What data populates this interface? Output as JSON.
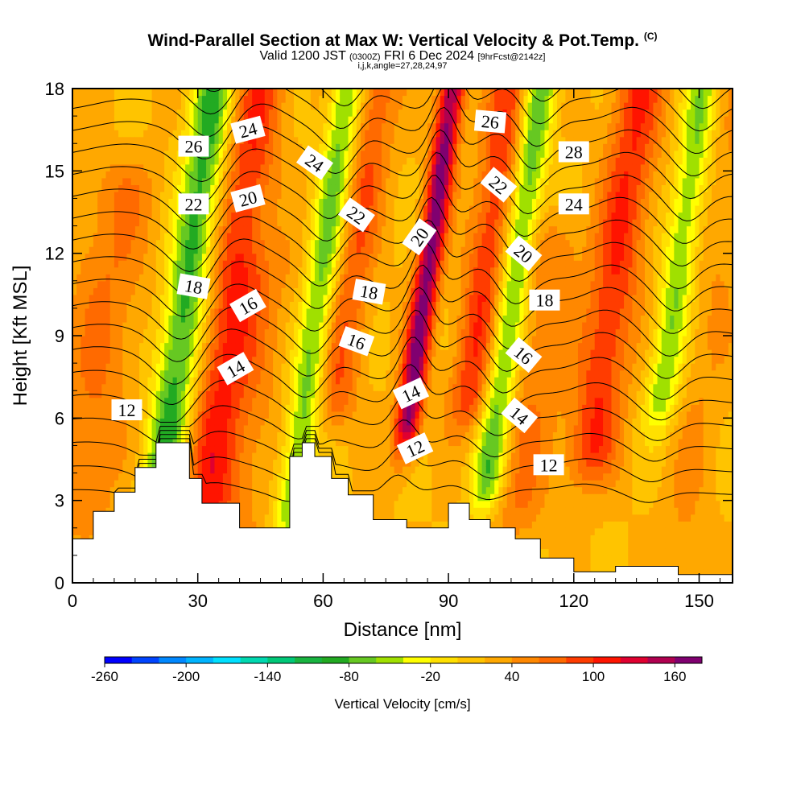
{
  "title": "Wind-Parallel Section at Max W: Vertical Velocity & Pot.Temp.",
  "title_mark": "(C)",
  "subtitle_pre": "Valid 1200 JST",
  "subtitle_utc": "(0300Z)",
  "subtitle_date": "FRI 6 Dec 2024",
  "subtitle_fcst": "[9hrFcst@2142z]",
  "index_line": "i,j,k,angle=27,28,24,97",
  "chart_data": {
    "type": "heatmap",
    "xlabel": "Distance [nm]",
    "ylabel": "Height [Kft MSL]",
    "xlim": [
      0,
      158
    ],
    "ylim": [
      0,
      18
    ],
    "x_ticks": [
      0,
      30,
      60,
      90,
      120,
      150
    ],
    "y_ticks": [
      0,
      3,
      6,
      9,
      12,
      15,
      18
    ],
    "colorbar": {
      "label": "Vertical Velocity [cm/s]",
      "tick_labels": [
        "-260",
        "-200",
        "-140",
        "-80",
        "-20",
        "40",
        "100",
        "160"
      ],
      "tick_values": [
        -260,
        -200,
        -140,
        -80,
        -20,
        40,
        100,
        160
      ],
      "min": -260,
      "max": 180,
      "step": 20,
      "colors": [
        "#0000ff",
        "#0044ff",
        "#0088ff",
        "#00b4ff",
        "#00e0ff",
        "#00d8b0",
        "#00c878",
        "#18b440",
        "#22aa22",
        "#66c822",
        "#a0e000",
        "#ffff00",
        "#ffe000",
        "#ffc400",
        "#ffa800",
        "#ff8800",
        "#ff6a00",
        "#ff3c00",
        "#ff1400",
        "#e00030",
        "#b00050",
        "#800070"
      ]
    },
    "terrain_kft": [
      [
        0,
        1.6
      ],
      [
        5,
        2.6
      ],
      [
        10,
        3.3
      ],
      [
        15,
        4.2
      ],
      [
        20,
        5.1
      ],
      [
        28,
        3.8
      ],
      [
        31,
        2.9
      ],
      [
        40,
        2.0
      ],
      [
        47,
        2.0
      ],
      [
        52,
        4.6
      ],
      [
        55,
        5.1
      ],
      [
        58,
        4.6
      ],
      [
        62,
        3.8
      ],
      [
        66,
        3.2
      ],
      [
        72,
        2.3
      ],
      [
        80,
        2.0
      ],
      [
        85,
        2.0
      ],
      [
        90,
        2.9
      ],
      [
        95,
        2.3
      ],
      [
        100,
        2.0
      ],
      [
        106,
        1.6
      ],
      [
        112,
        0.9
      ],
      [
        120,
        0.4
      ],
      [
        130,
        0.6
      ],
      [
        145,
        0.3
      ],
      [
        155,
        0.3
      ],
      [
        158,
        0.3
      ]
    ],
    "velocity_columns": [
      {
        "x": 7,
        "half_width": 9,
        "w": 40,
        "z_range": [
          3,
          14
        ]
      },
      {
        "x": 26,
        "half_width": 5,
        "w": -110,
        "z_range": [
          4,
          18
        ]
      },
      {
        "x": 37,
        "half_width": 6,
        "w": 80,
        "z_range": [
          3,
          18
        ]
      },
      {
        "x": 45,
        "half_width": 7,
        "w": 30,
        "z_range": [
          2,
          11
        ]
      },
      {
        "x": 58,
        "half_width": 4,
        "w": -90,
        "z_range": [
          3,
          18
        ]
      },
      {
        "x": 65,
        "half_width": 5,
        "w": 60,
        "z_range": [
          7,
          18
        ]
      },
      {
        "x": 83,
        "half_width": 3,
        "w": 150,
        "z_range": [
          6,
          18
        ]
      },
      {
        "x": 97,
        "half_width": 5,
        "w": 80,
        "z_range": [
          7,
          18
        ]
      },
      {
        "x": 104,
        "half_width": 4,
        "w": -100,
        "z_range": [
          4,
          18
        ]
      },
      {
        "x": 112,
        "half_width": 7,
        "w": 40,
        "z_range": [
          3,
          12
        ]
      },
      {
        "x": 128,
        "half_width": 6,
        "w": 80,
        "z_range": [
          5,
          18
        ]
      },
      {
        "x": 143,
        "half_width": 4,
        "w": -80,
        "z_range": [
          7,
          18
        ]
      },
      {
        "x": 152,
        "half_width": 6,
        "w": 20,
        "z_range": [
          0,
          18
        ]
      }
    ],
    "theta_levels": [
      10,
      11,
      12,
      13,
      14,
      15,
      16,
      17,
      18,
      19,
      20,
      21,
      22,
      23,
      24,
      25,
      26,
      27,
      28,
      29,
      30,
      31
    ],
    "theta_labels": [
      {
        "text": "12",
        "x": 13,
        "z": 6.3,
        "angle": 0
      },
      {
        "text": "14",
        "x": 39,
        "z": 7.8,
        "angle": -30
      },
      {
        "text": "16",
        "x": 42,
        "z": 10.1,
        "angle": -30
      },
      {
        "text": "18",
        "x": 29,
        "z": 10.8,
        "angle": 10
      },
      {
        "text": "20",
        "x": 42,
        "z": 14.0,
        "angle": -15
      },
      {
        "text": "22",
        "x": 29,
        "z": 13.8,
        "angle": 0
      },
      {
        "text": "24",
        "x": 42,
        "z": 16.5,
        "angle": -15
      },
      {
        "text": "26",
        "x": 29,
        "z": 15.9,
        "angle": 0
      },
      {
        "text": "24",
        "x": 58,
        "z": 15.3,
        "angle": 35
      },
      {
        "text": "22",
        "x": 68,
        "z": 13.4,
        "angle": 35
      },
      {
        "text": "18",
        "x": 71,
        "z": 10.6,
        "angle": 10
      },
      {
        "text": "16",
        "x": 68,
        "z": 8.8,
        "angle": 20
      },
      {
        "text": "20",
        "x": 83,
        "z": 12.6,
        "angle": -55
      },
      {
        "text": "14",
        "x": 81,
        "z": 6.9,
        "angle": -25
      },
      {
        "text": "12",
        "x": 82,
        "z": 4.9,
        "angle": -25
      },
      {
        "text": "26",
        "x": 100,
        "z": 16.8,
        "angle": 5
      },
      {
        "text": "22",
        "x": 102,
        "z": 14.5,
        "angle": 40
      },
      {
        "text": "20",
        "x": 108,
        "z": 12.0,
        "angle": 40
      },
      {
        "text": "18",
        "x": 113,
        "z": 10.3,
        "angle": 0
      },
      {
        "text": "16",
        "x": 108,
        "z": 8.3,
        "angle": 40
      },
      {
        "text": "14",
        "x": 107,
        "z": 6.1,
        "angle": 40
      },
      {
        "text": "12",
        "x": 114,
        "z": 4.3,
        "angle": 0
      },
      {
        "text": "28",
        "x": 120,
        "z": 15.7,
        "angle": 0
      },
      {
        "text": "24",
        "x": 120,
        "z": 13.8,
        "angle": 0
      }
    ]
  }
}
